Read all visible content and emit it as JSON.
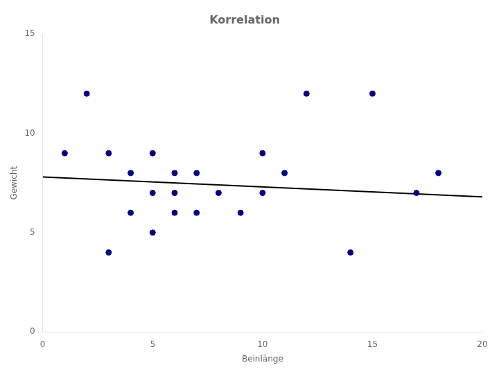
{
  "chart_data": {
    "type": "scatter",
    "title": "Korrelation",
    "x_label": "Beinlänge",
    "y_label": "Gewicht",
    "series": [
      {
        "type": "scatter",
        "color": "navy",
        "marker": "circle",
        "x": [
          1,
          2,
          3,
          3,
          4,
          4,
          5,
          5,
          5,
          6,
          6,
          6,
          7,
          7,
          8,
          9,
          10,
          10,
          11,
          12,
          14,
          15,
          17,
          18
        ],
        "values": [
          9,
          12,
          4,
          9,
          6,
          8,
          5,
          7,
          9,
          6,
          7,
          8,
          6,
          8,
          7,
          6,
          7,
          9,
          8,
          12,
          4,
          12,
          7,
          8
        ]
      },
      {
        "type": "line",
        "color": "black",
        "line_style": "solid",
        "x": [
          0,
          20
        ],
        "values": [
          7.8,
          6.8
        ]
      }
    ],
    "xlim": [
      0,
      20
    ],
    "xticks": [
      0,
      5,
      10,
      15,
      20
    ],
    "ylim": [
      0,
      15
    ],
    "yticks": [
      0,
      5,
      10,
      15
    ],
    "grid": false
  }
}
